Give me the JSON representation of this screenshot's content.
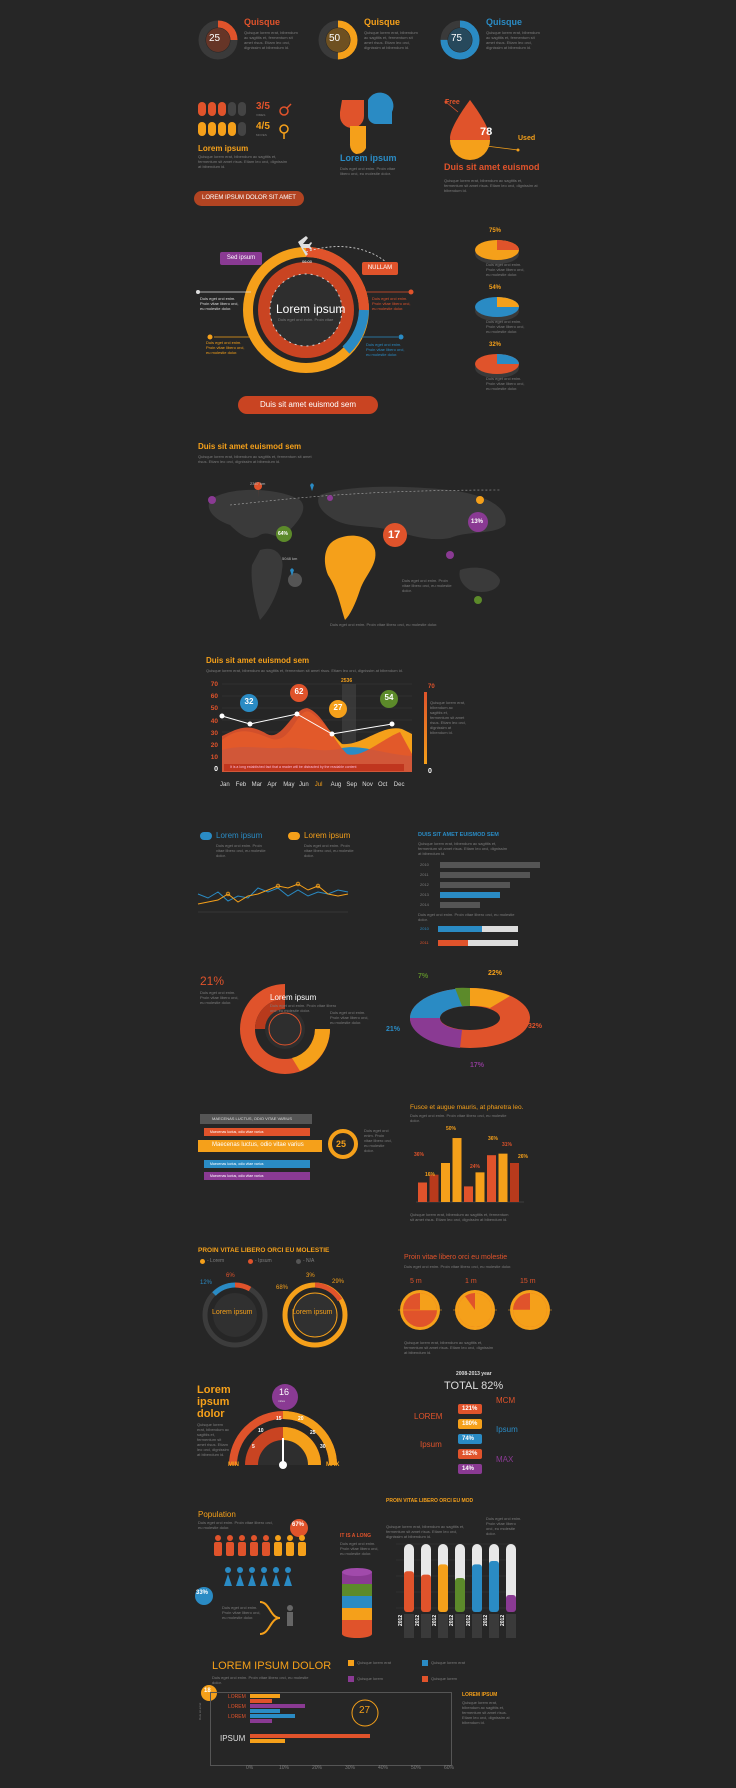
{
  "colors": {
    "background": "#262626",
    "orange": "#e0532b",
    "yellow": "#f5a01a",
    "blue": "#2a8bc4",
    "purple": "#8a3a93",
    "green": "#5c8a2a",
    "dark": "#333333"
  },
  "dummy_text": "Quisque lorem erat, bibendum ac sagittis et, fermentum sit amet risus. Etiam leo orci, dignissim at bibendum id.",
  "dummy_short": "Duis eget orci enim. Proin vitae libero orci, eu molestie dolor.",
  "gauges": [
    {
      "title": "Quisque",
      "value": "25",
      "pct": 0.25,
      "color": "#e0532b"
    },
    {
      "title": "Quisque",
      "value": "50",
      "pct": 0.5,
      "color": "#f5a01a"
    },
    {
      "title": "Quisque",
      "value": "75",
      "pct": 0.75,
      "color": "#2a8bc4"
    }
  ],
  "gender": {
    "male_ratio": "3/5",
    "female_ratio": "4/5",
    "male_sub": "VIMES",
    "female_sub": "MOVES",
    "heading": "Lorem ipsum",
    "button": "LOREM IPSUM DOLOR SIT AMET"
  },
  "petals": {
    "heading": "Lorem ipsum"
  },
  "drop": {
    "free": "Free",
    "used": "Used",
    "value": "78",
    "heading": "Duis sit amet euismod"
  },
  "clock": {
    "center_title": "Lorem ipsum",
    "center_sub": "Duis eget orci enim. Proin vitae",
    "tag_left": "Sed ipsum",
    "tag_right": "NULLAM",
    "top_label": "06:00",
    "button": "Duis sit amet euismod sem",
    "pies": [
      "75%",
      "54%",
      "32%"
    ]
  },
  "map": {
    "heading": "Duis sit amet euismod sem",
    "labels": [
      "2367 km",
      "5048 km"
    ],
    "big": "17",
    "bubbles": [
      "13%",
      "64%",
      "38%"
    ]
  },
  "area": {
    "heading": "Duis sit amet euismod sem",
    "months": [
      "Jan",
      "Feb",
      "Mar",
      "Apr",
      "May",
      "Jun",
      "Jul",
      "Aug",
      "Sep",
      "Nov",
      "Oct",
      "Dec"
    ],
    "yticks": [
      "70",
      "60",
      "50",
      "40",
      "30",
      "20",
      "10",
      "0"
    ],
    "right_top": "70",
    "right_bottom": "0",
    "callouts": [
      "32",
      "62",
      "27",
      "54"
    ],
    "top_mark": "2536",
    "banner": "It is a long established fact that a reader will be distracted by the readable content"
  },
  "lines": {
    "legend": [
      "Lorem ipsum",
      "Lorem ipsum"
    ],
    "bars_heading": "DUIS SIT AMET EUISMOD SEM",
    "bar_labels": [
      "2010",
      "2011",
      "2012",
      "2013",
      "2014"
    ],
    "years": [
      "2010",
      "2011"
    ],
    "progress": [
      0.55,
      0.38
    ]
  },
  "donuts": {
    "left_pct": "21%",
    "left_title": "Lorem ipsum",
    "ring": [
      "7%",
      "22%",
      "32%",
      "17%",
      "21%"
    ]
  },
  "ribbons": {
    "tag": "MAECENAS LUCTUS, ODIO VITAE VARIUS",
    "items": [
      "Maecenas luctus, odio vitae varius",
      "Maecenas luctus, odio vitae varius",
      "Maecenas luctus, odio vitae varius",
      "Maecenas luctus, odio vitae varius",
      "Maecenas luctus, odio vitae varius"
    ],
    "circle": "25",
    "bars_heading": "Fusce et augue mauris, at pharetra leo.",
    "bar_values": [
      "50%",
      "36%",
      "16%",
      "24%",
      "36%",
      "31%",
      "26%"
    ]
  },
  "circles": {
    "heading": "PROIN VITAE LIBERO ORCI EU MOLESTIE",
    "legend": [
      "- Lorem",
      "- Ipsum",
      "- N/A"
    ],
    "pcts": [
      "12%",
      "6%",
      "68%",
      "3%",
      "29%"
    ],
    "label": "Lorem ipsum",
    "right_heading": "Proin vitae libero orci eu molestie",
    "times": [
      "5 m",
      "1 m",
      "15 m"
    ]
  },
  "speed": {
    "title": "Lorem ipsum dolor",
    "badge": "16",
    "badge_sub": "miles",
    "min": "MIN",
    "max": "MAX",
    "ticks": [
      "5",
      "10",
      "15",
      "20",
      "25",
      "30"
    ]
  },
  "total": {
    "year": "2008-2013 year",
    "total": "TOTAL 82%",
    "rows": [
      "121%",
      "180%",
      "74%",
      "182%",
      "14%"
    ],
    "labels": [
      "MCM",
      "Ipsum",
      "MAX",
      "LOREM",
      "Ipsum"
    ]
  },
  "pop": {
    "heading": "Population",
    "p67": "67%",
    "p33": "33%",
    "cyl_label": "IT IS A LONG",
    "tubes_heading": "PROIN VITAE LIBERO ORCI EU MOD",
    "years": [
      "2012",
      "2012",
      "2012",
      "2012",
      "2012",
      "2012",
      "2012"
    ],
    "levels": [
      0.6,
      0.55,
      0.7,
      0.5,
      0.7,
      0.75,
      0.25
    ]
  },
  "hbar": {
    "heading": "LOREM IPSUM DOLOR",
    "badge": "18",
    "circle": "27",
    "rows": [
      "LOREM",
      "LOREM",
      "LOREM",
      "IPSUM"
    ],
    "xticks": [
      "0%",
      "10%",
      "20%",
      "30%",
      "40%",
      "50%",
      "60%"
    ],
    "legend": [
      "Quisque lorem erat",
      "Quisque lorem erat",
      "Quisque lorem",
      "Quisque lorem"
    ],
    "side_title": "LOREM IPSUM",
    "vertical": "Duis sit amet"
  }
}
